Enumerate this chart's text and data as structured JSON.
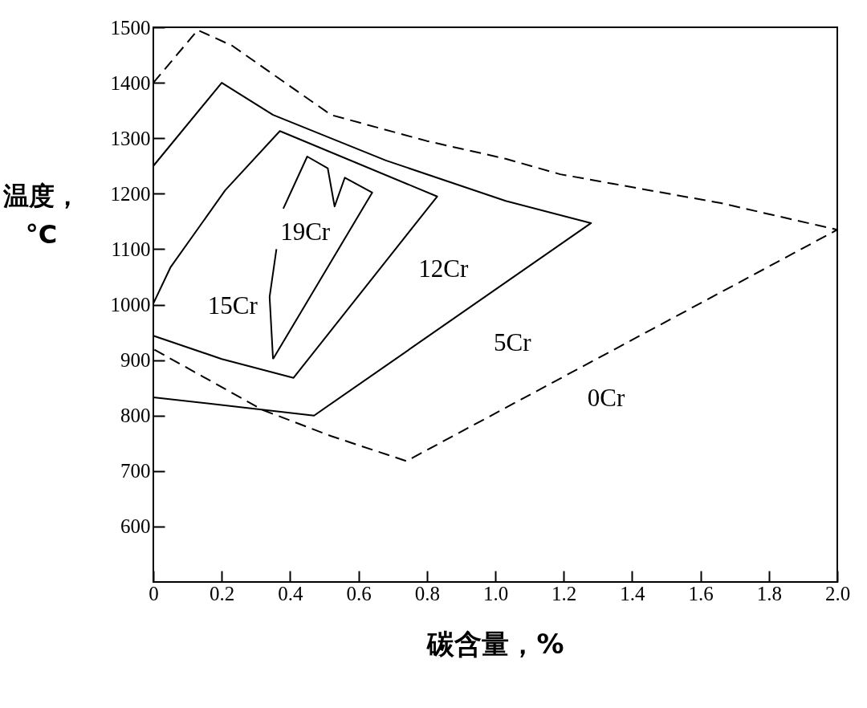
{
  "chart_data": {
    "type": "line",
    "xlabel": "碳含量，%",
    "ylabel": "温度，°C",
    "xlim": [
      0,
      2.0
    ],
    "ylim": [
      500,
      1500
    ],
    "xticks": [
      0,
      0.2,
      0.4,
      0.6,
      0.8,
      {
        "value": 1,
        "label": "1.0"
      },
      1.2,
      1.4,
      1.6,
      1.8,
      {
        "value": 2,
        "label": "2.0"
      }
    ],
    "yticks": [
      600,
      700,
      800,
      900,
      1000,
      1100,
      1200,
      1300,
      1400,
      1500
    ],
    "grid": false,
    "marker": "none",
    "series": [
      {
        "color": "#000000",
        "line_style": "dashed",
        "x": [
          0,
          0.13,
          0.23,
          0.52,
          0.8,
          1.03,
          1.19,
          1.66,
          2.0,
          0.74,
          0.52,
          0.32,
          0
        ],
        "values": [
          1400,
          1495,
          1467,
          1342,
          1295,
          1263,
          1235,
          1183,
          1135,
          718,
          763,
          810,
          920
        ]
      },
      {
        "color": "#000000",
        "line_style": "solid",
        "x": [
          0,
          0.2,
          0.35,
          0.68,
          1.03,
          1.28,
          0.47,
          0
        ],
        "values": [
          1250,
          1400,
          1342,
          1260,
          1187,
          1147,
          800,
          833
        ]
      },
      {
        "color": "#000000",
        "line_style": "solid",
        "x": [
          0,
          0.05,
          0.21,
          0.37,
          0.83,
          0.41,
          0.2,
          0
        ],
        "values": [
          1002,
          1067,
          1206,
          1313,
          1195,
          868,
          902,
          944
        ]
      },
      {
        "color": "#000000",
        "line_style": "solid",
        "x": [
          0.35,
          0.34,
          0.36,
          0.37,
          0.38,
          0.45,
          0.51,
          0.53,
          0.56,
          0.64,
          0.35
        ],
        "values": [
          902,
          1014,
          1100,
          null,
          1173,
          1267,
          1246,
          1177,
          1229,
          1202,
          902
        ]
      }
    ],
    "annotations": [
      "19Cr",
      "15Cr",
      "12Cr",
      "5Cr",
      "0Cr"
    ]
  }
}
